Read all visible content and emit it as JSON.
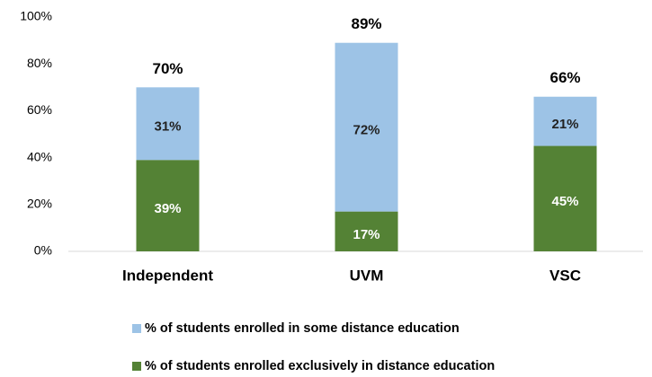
{
  "chart_data": {
    "type": "stacked_bar",
    "categories": [
      "Independent",
      "UVM",
      "VSC"
    ],
    "series": [
      {
        "name": "% of students enrolled exclusively in distance education",
        "color": "#548235",
        "values": [
          39,
          17,
          45
        ],
        "value_labels": [
          "39%",
          "17%",
          "45%"
        ]
      },
      {
        "name": "% of students enrolled in some distance education",
        "color": "#9dc3e6",
        "values": [
          31,
          72,
          21
        ],
        "value_labels": [
          "31%",
          "72%",
          "21%"
        ]
      }
    ],
    "totals": [
      70,
      89,
      66
    ],
    "total_labels": [
      "70%",
      "89%",
      "66%"
    ],
    "ylim": [
      0,
      100
    ],
    "yticks": [
      {
        "value": 0,
        "label": "0%"
      },
      {
        "value": 20,
        "label": "20%"
      },
      {
        "value": 40,
        "label": "40%"
      },
      {
        "value": 60,
        "label": "60%"
      },
      {
        "value": 80,
        "label": "80%"
      },
      {
        "value": 100,
        "label": "100%"
      }
    ],
    "grid": false
  }
}
